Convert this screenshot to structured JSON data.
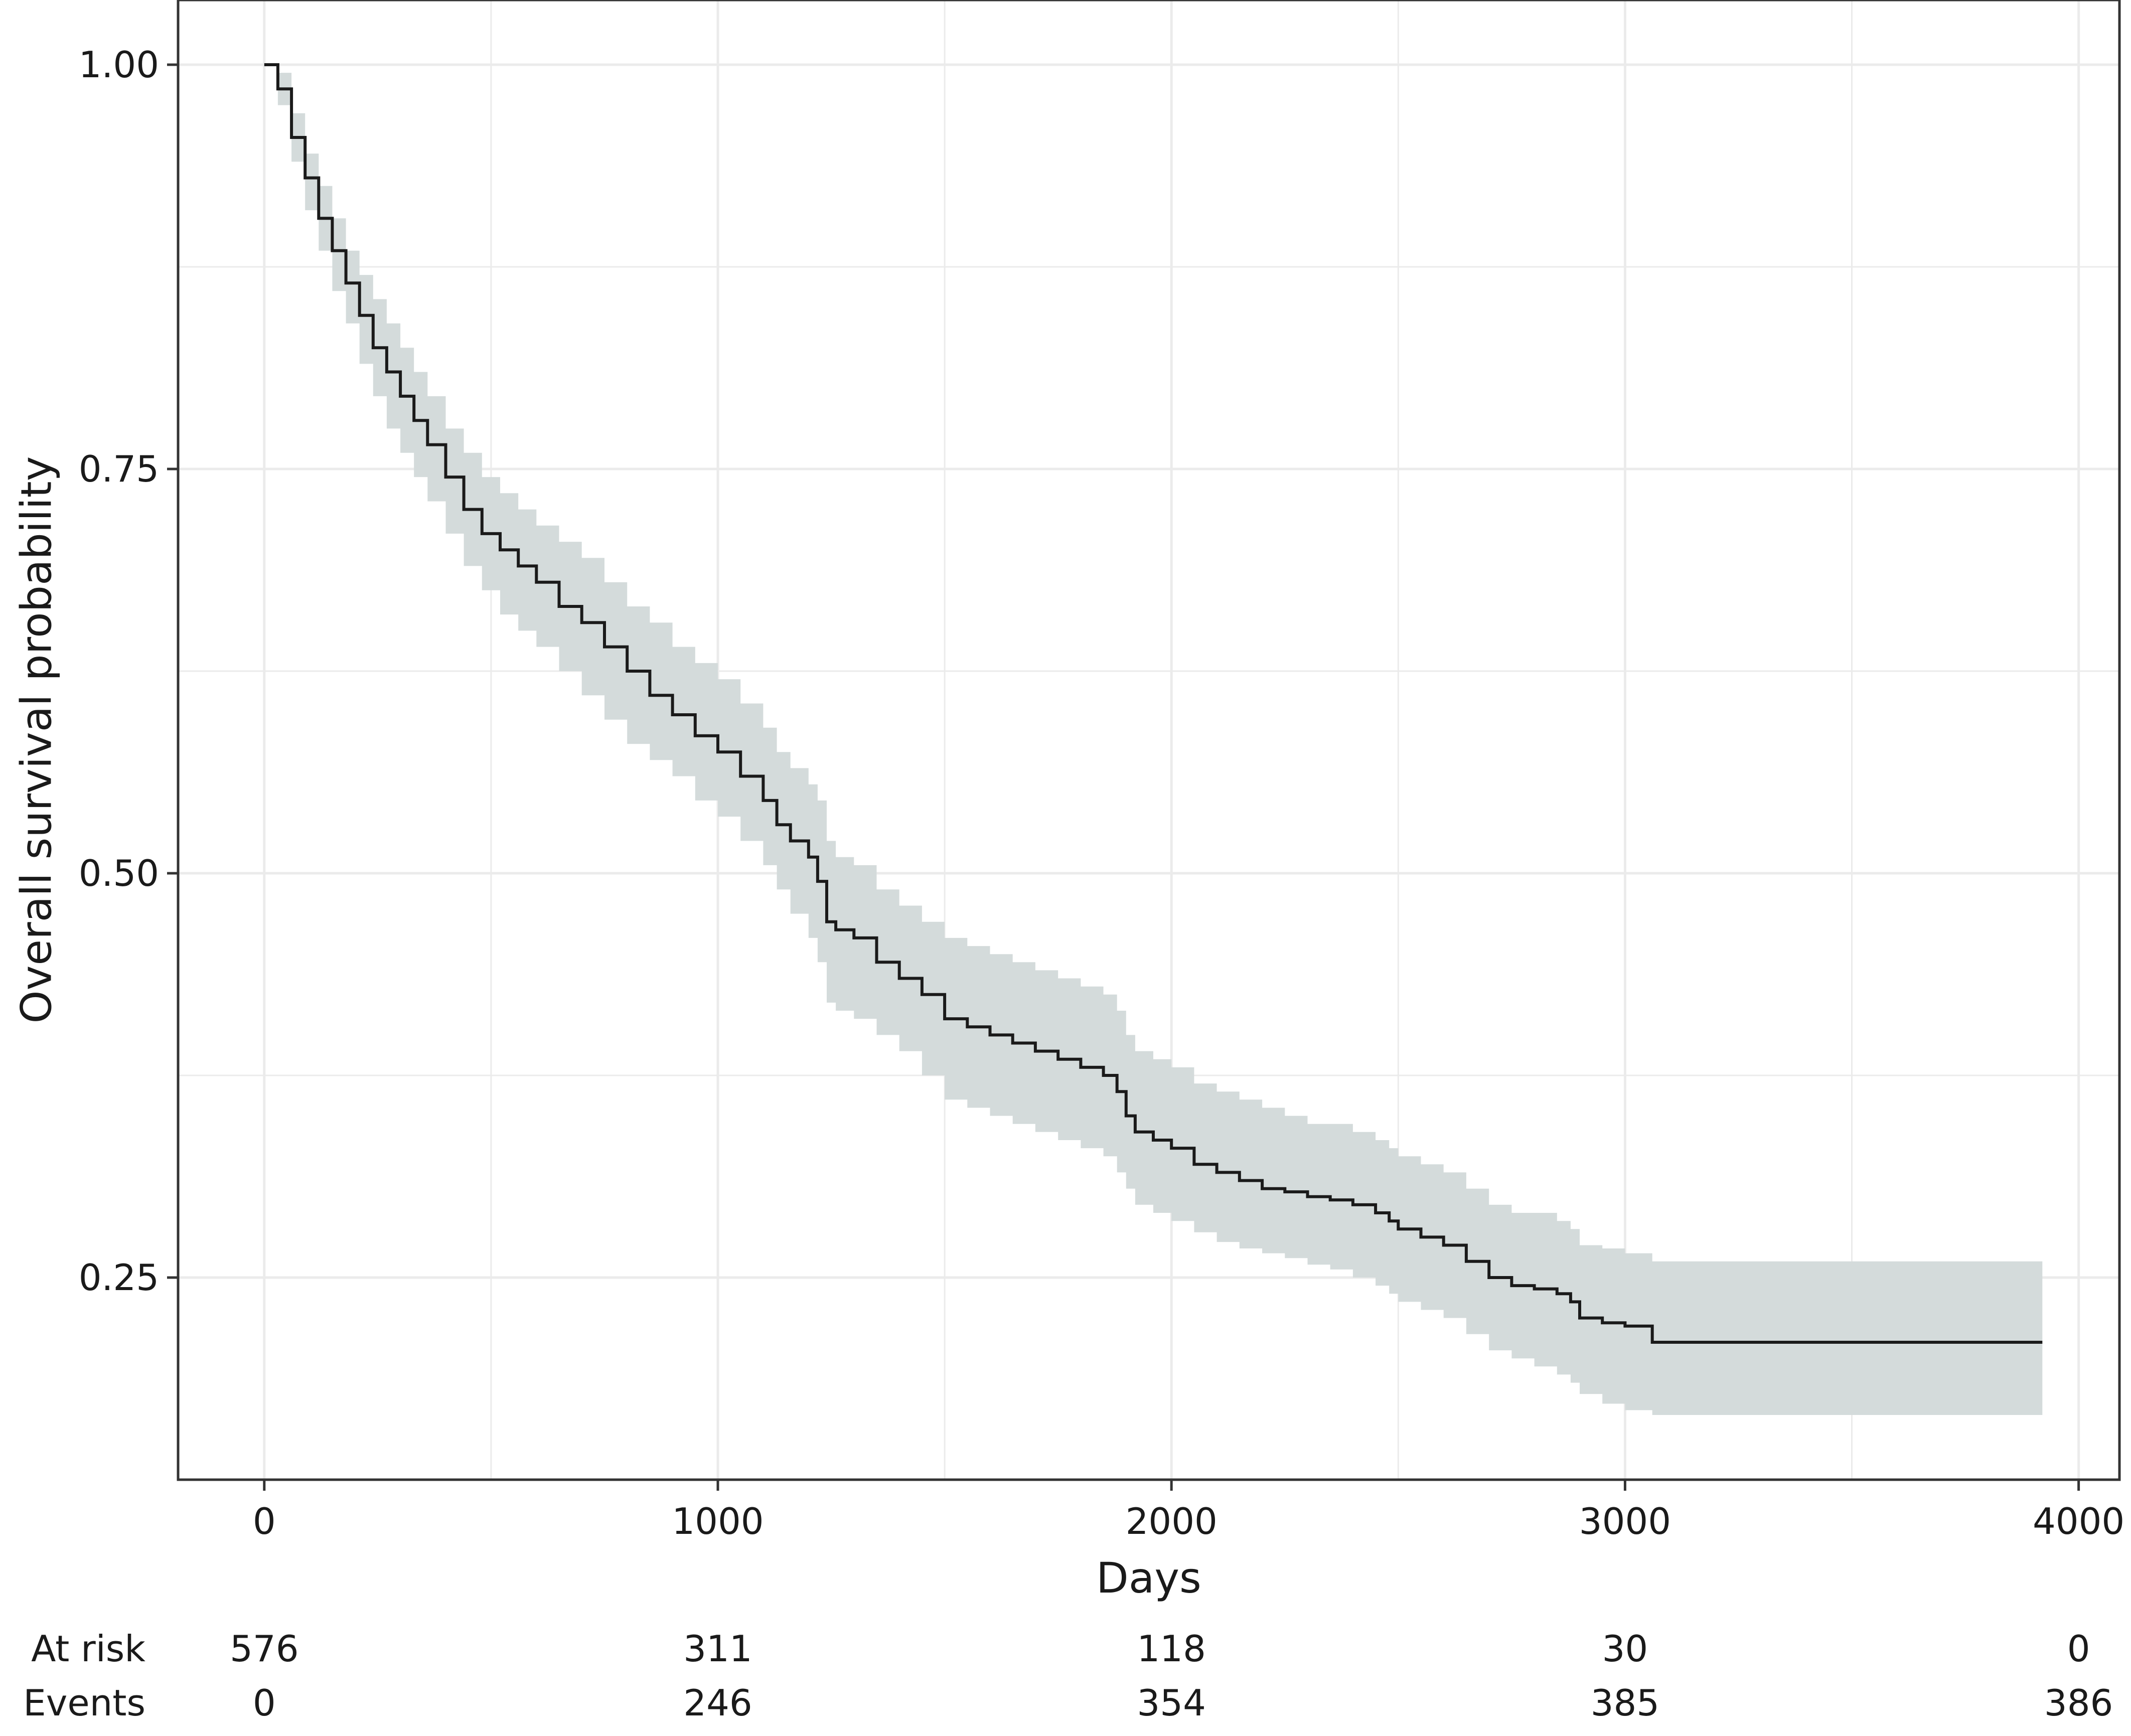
{
  "chart_data": {
    "type": "line",
    "subtype": "kaplan-meier survival curve with shaded confidence band",
    "xlabel": "Days",
    "ylabel": "Overall survival probability",
    "xlim": [
      -190,
      4090
    ],
    "ylim": [
      0.125,
      1.04
    ],
    "x_ticks": [
      0,
      1000,
      2000,
      3000,
      4000
    ],
    "x_tick_labels": [
      "0",
      "1000",
      "2000",
      "3000",
      "4000"
    ],
    "y_ticks": [
      0.25,
      0.5,
      0.75,
      1.0
    ],
    "y_tick_labels": [
      "0.25",
      "0.50",
      "0.75",
      "1.00"
    ],
    "grid": true,
    "colors": {
      "line": "#1a1a1a",
      "band": "#d4dbdb",
      "grid": "#ebebeb",
      "frame": "#333333"
    },
    "series": [
      {
        "x": [
          0,
          30,
          60,
          90,
          120,
          150,
          180,
          210,
          240,
          270,
          300,
          330,
          360,
          400,
          440,
          480,
          520,
          560,
          600,
          650,
          700,
          750,
          800,
          850,
          900,
          950,
          1000,
          1050,
          1100,
          1130,
          1160,
          1200,
          1220,
          1240,
          1260,
          1300,
          1350,
          1400,
          1450,
          1500,
          1550,
          1600,
          1650,
          1700,
          1750,
          1800,
          1850,
          1880,
          1900,
          1920,
          1960,
          2000,
          2050,
          2100,
          2150,
          2200,
          2250,
          2300,
          2350,
          2400,
          2450,
          2480,
          2500,
          2550,
          2600,
          2650,
          2700,
          2750,
          2800,
          2850,
          2880,
          2900,
          2950,
          3000,
          3060,
          3100,
          3200,
          3300,
          3400,
          3500,
          3600,
          3700,
          3800,
          3920
        ],
        "y": [
          1.0,
          0.985,
          0.955,
          0.93,
          0.905,
          0.885,
          0.865,
          0.845,
          0.825,
          0.81,
          0.795,
          0.78,
          0.765,
          0.745,
          0.725,
          0.71,
          0.7,
          0.69,
          0.68,
          0.665,
          0.655,
          0.64,
          0.625,
          0.61,
          0.598,
          0.585,
          0.575,
          0.56,
          0.545,
          0.53,
          0.52,
          0.51,
          0.495,
          0.47,
          0.465,
          0.46,
          0.445,
          0.435,
          0.425,
          0.41,
          0.405,
          0.4,
          0.395,
          0.39,
          0.385,
          0.38,
          0.375,
          0.365,
          0.35,
          0.34,
          0.335,
          0.33,
          0.32,
          0.315,
          0.31,
          0.305,
          0.303,
          0.3,
          0.298,
          0.295,
          0.29,
          0.285,
          0.28,
          0.275,
          0.27,
          0.26,
          0.25,
          0.245,
          0.243,
          0.24,
          0.235,
          0.225,
          0.222,
          0.22,
          0.21,
          0.21,
          0.21,
          0.21,
          0.21,
          0.21,
          0.21,
          0.21,
          0.21,
          0.21
        ],
        "lower": [
          1.0,
          0.975,
          0.94,
          0.91,
          0.885,
          0.86,
          0.84,
          0.815,
          0.795,
          0.775,
          0.76,
          0.745,
          0.73,
          0.71,
          0.69,
          0.675,
          0.66,
          0.65,
          0.64,
          0.625,
          0.61,
          0.595,
          0.58,
          0.57,
          0.56,
          0.545,
          0.535,
          0.52,
          0.505,
          0.49,
          0.475,
          0.46,
          0.445,
          0.42,
          0.415,
          0.41,
          0.4,
          0.39,
          0.375,
          0.36,
          0.355,
          0.35,
          0.345,
          0.34,
          0.335,
          0.33,
          0.325,
          0.315,
          0.305,
          0.295,
          0.29,
          0.285,
          0.278,
          0.272,
          0.268,
          0.265,
          0.262,
          0.258,
          0.255,
          0.25,
          0.245,
          0.24,
          0.235,
          0.23,
          0.225,
          0.215,
          0.205,
          0.2,
          0.195,
          0.19,
          0.185,
          0.178,
          0.172,
          0.168,
          0.165,
          0.165,
          0.165,
          0.165,
          0.165,
          0.165,
          0.165,
          0.165,
          0.165,
          0.165
        ],
        "upper": [
          1.0,
          0.995,
          0.97,
          0.945,
          0.925,
          0.905,
          0.885,
          0.87,
          0.855,
          0.84,
          0.825,
          0.81,
          0.795,
          0.775,
          0.76,
          0.745,
          0.735,
          0.725,
          0.715,
          0.705,
          0.695,
          0.68,
          0.665,
          0.655,
          0.64,
          0.63,
          0.62,
          0.605,
          0.59,
          0.575,
          0.565,
          0.555,
          0.545,
          0.52,
          0.51,
          0.505,
          0.49,
          0.48,
          0.47,
          0.46,
          0.455,
          0.45,
          0.445,
          0.44,
          0.435,
          0.43,
          0.425,
          0.415,
          0.4,
          0.39,
          0.385,
          0.38,
          0.37,
          0.365,
          0.36,
          0.355,
          0.35,
          0.345,
          0.345,
          0.34,
          0.335,
          0.33,
          0.325,
          0.32,
          0.315,
          0.305,
          0.295,
          0.29,
          0.29,
          0.285,
          0.28,
          0.27,
          0.268,
          0.265,
          0.26,
          0.26,
          0.26,
          0.26,
          0.26,
          0.26,
          0.26,
          0.26,
          0.26,
          0.26
        ]
      }
    ],
    "risk_table": {
      "times": [
        0,
        1000,
        2000,
        3000,
        4000
      ],
      "rows": [
        {
          "label": "At risk",
          "values": [
            "576",
            "311",
            "118",
            "30",
            "0"
          ]
        },
        {
          "label": "Events",
          "values": [
            "0",
            "246",
            "354",
            "385",
            "386"
          ]
        }
      ]
    }
  }
}
